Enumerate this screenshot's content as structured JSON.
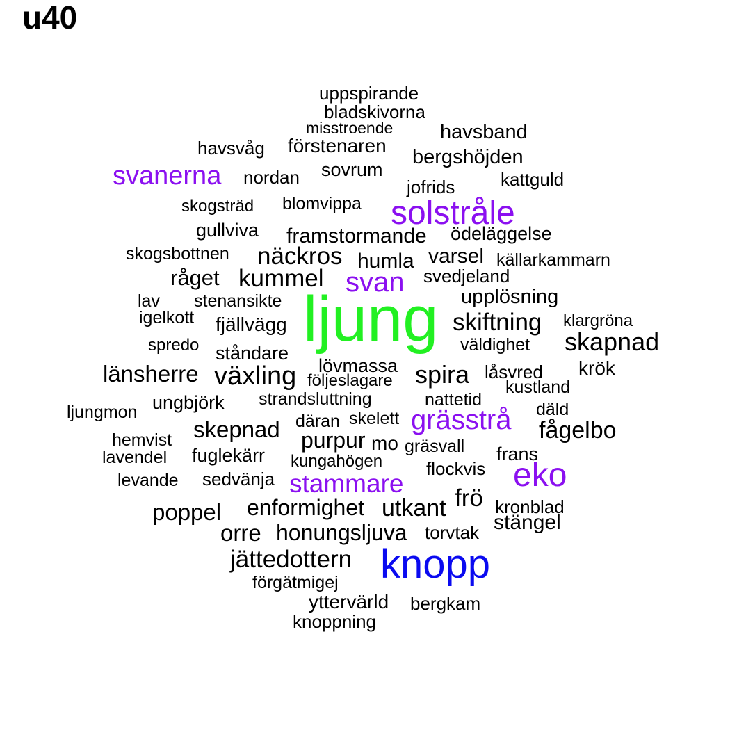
{
  "title": "u40",
  "colors": {
    "default": "#000000",
    "purple": "#8B10F0",
    "green": "#22F022",
    "blue": "#0A0AF0"
  },
  "words": [
    {
      "text": "uppspirande",
      "color": "default"
    },
    {
      "text": "bladskivorna",
      "color": "default"
    },
    {
      "text": "misstroende",
      "color": "default"
    },
    {
      "text": "havsband",
      "color": "default"
    },
    {
      "text": "havsvåg",
      "color": "default"
    },
    {
      "text": "förstenaren",
      "color": "default"
    },
    {
      "text": "bergshöjden",
      "color": "default"
    },
    {
      "text": "svanerna",
      "color": "purple"
    },
    {
      "text": "nordan",
      "color": "default"
    },
    {
      "text": "sovrum",
      "color": "default"
    },
    {
      "text": "kattguld",
      "color": "default"
    },
    {
      "text": "jofrids",
      "color": "default"
    },
    {
      "text": "skogsträd",
      "color": "default"
    },
    {
      "text": "blomvippa",
      "color": "default"
    },
    {
      "text": "solstråle",
      "color": "purple"
    },
    {
      "text": "gullviva",
      "color": "default"
    },
    {
      "text": "framstormande",
      "color": "default"
    },
    {
      "text": "ödeläggelse",
      "color": "default"
    },
    {
      "text": "skogsbottnen",
      "color": "default"
    },
    {
      "text": "näckros",
      "color": "default"
    },
    {
      "text": "humla",
      "color": "default"
    },
    {
      "text": "varsel",
      "color": "default"
    },
    {
      "text": "källarkammarn",
      "color": "default"
    },
    {
      "text": "råget",
      "color": "default"
    },
    {
      "text": "kummel",
      "color": "default"
    },
    {
      "text": "svan",
      "color": "purple"
    },
    {
      "text": "svedjeland",
      "color": "default"
    },
    {
      "text": "lav",
      "color": "default"
    },
    {
      "text": "stenansikte",
      "color": "default"
    },
    {
      "text": "upplösning",
      "color": "default"
    },
    {
      "text": "ljung",
      "color": "green"
    },
    {
      "text": "igelkott",
      "color": "default"
    },
    {
      "text": "fjällvägg",
      "color": "default"
    },
    {
      "text": "skiftning",
      "color": "default"
    },
    {
      "text": "klargröna",
      "color": "default"
    },
    {
      "text": "spredo",
      "color": "default"
    },
    {
      "text": "väldighet",
      "color": "default"
    },
    {
      "text": "skapnad",
      "color": "default"
    },
    {
      "text": "ståndare",
      "color": "default"
    },
    {
      "text": "lövmassa",
      "color": "default"
    },
    {
      "text": "krök",
      "color": "default"
    },
    {
      "text": "länsherre",
      "color": "default"
    },
    {
      "text": "växling",
      "color": "default"
    },
    {
      "text": "följeslagare",
      "color": "default"
    },
    {
      "text": "spira",
      "color": "default"
    },
    {
      "text": "låsvred",
      "color": "default"
    },
    {
      "text": "kustland",
      "color": "default"
    },
    {
      "text": "strandsluttning",
      "color": "default"
    },
    {
      "text": "ungbjörk",
      "color": "default"
    },
    {
      "text": "nattetid",
      "color": "default"
    },
    {
      "text": "ljungmon",
      "color": "default"
    },
    {
      "text": "däld",
      "color": "default"
    },
    {
      "text": "skelett",
      "color": "default"
    },
    {
      "text": "däran",
      "color": "default"
    },
    {
      "text": "grässtrå",
      "color": "purple"
    },
    {
      "text": "skepnad",
      "color": "default"
    },
    {
      "text": "fågelbo",
      "color": "default"
    },
    {
      "text": "hemvist",
      "color": "default"
    },
    {
      "text": "purpur",
      "color": "default"
    },
    {
      "text": "mo",
      "color": "default"
    },
    {
      "text": "gräsvall",
      "color": "default"
    },
    {
      "text": "lavendel",
      "color": "default"
    },
    {
      "text": "fuglekärr",
      "color": "default"
    },
    {
      "text": "kungahögen",
      "color": "default"
    },
    {
      "text": "frans",
      "color": "default"
    },
    {
      "text": "flockvis",
      "color": "default"
    },
    {
      "text": "levande",
      "color": "default"
    },
    {
      "text": "sedvänja",
      "color": "default"
    },
    {
      "text": "stammare",
      "color": "purple"
    },
    {
      "text": "eko",
      "color": "purple"
    },
    {
      "text": "frö",
      "color": "default"
    },
    {
      "text": "kronblad",
      "color": "default"
    },
    {
      "text": "enformighet",
      "color": "default"
    },
    {
      "text": "utkant",
      "color": "default"
    },
    {
      "text": "poppel",
      "color": "default"
    },
    {
      "text": "stängel",
      "color": "default"
    },
    {
      "text": "orre",
      "color": "default"
    },
    {
      "text": "honungsljuva",
      "color": "default"
    },
    {
      "text": "torvtak",
      "color": "default"
    },
    {
      "text": "jättedottern",
      "color": "default"
    },
    {
      "text": "knopp",
      "color": "blue"
    },
    {
      "text": "förgätmigej",
      "color": "default"
    },
    {
      "text": "yttervärld",
      "color": "default"
    },
    {
      "text": "bergkam",
      "color": "default"
    },
    {
      "text": "knoppning",
      "color": "default"
    }
  ]
}
